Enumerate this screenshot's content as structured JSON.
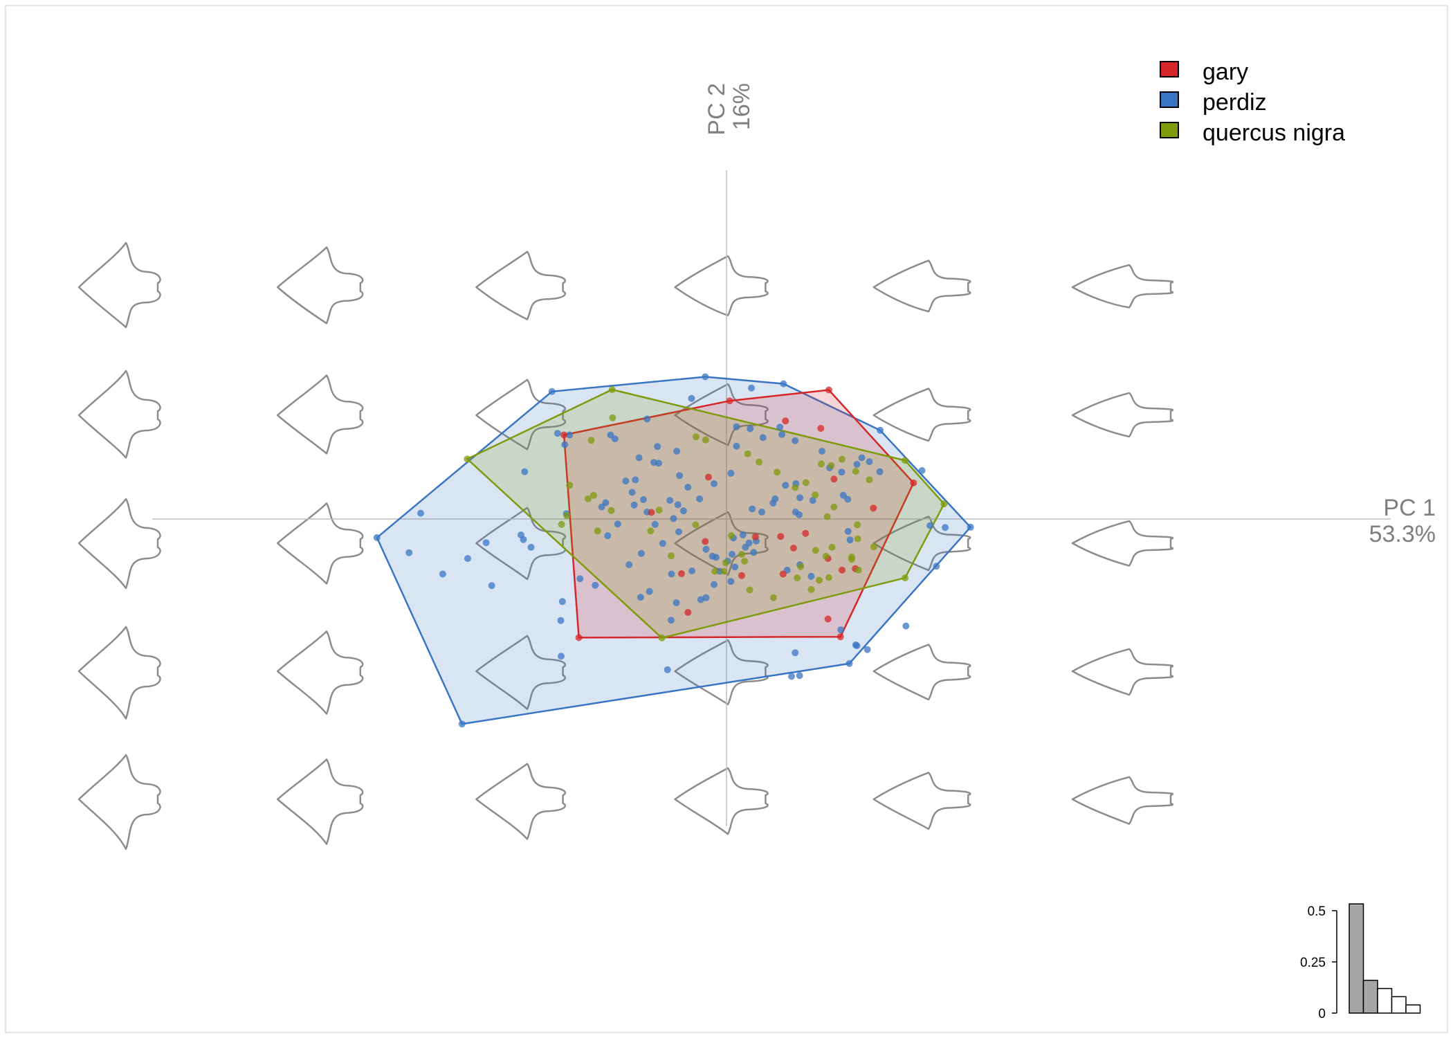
{
  "chart_data": {
    "type": "scatter",
    "xlabel": "PC 1",
    "xvariance": "53.3%",
    "ylabel": "PC 2",
    "yvariance": "16%",
    "xlim": [
      -1.0,
      1.0
    ],
    "ylim": [
      -0.5,
      0.6
    ],
    "legend_position": "top-right",
    "colors": {
      "gary": "#d62728",
      "perdiz": "#3a75c4",
      "quercus nigra": "#7f9a0c",
      "shape": "#8c8c8c",
      "axis": "#bfbfbf"
    },
    "series": [
      {
        "name": "gary",
        "color": "#d62728",
        "hull": [
          [
            -0.405,
            0.217
          ],
          [
            0.008,
            0.305
          ],
          [
            0.255,
            0.333
          ],
          [
            0.466,
            0.093
          ],
          [
            0.284,
            -0.304
          ],
          [
            -0.368,
            -0.306
          ]
        ],
        "points": [
          [
            -0.405,
            0.217
          ],
          [
            0.008,
            0.305
          ],
          [
            0.255,
            0.333
          ],
          [
            0.466,
            0.093
          ],
          [
            0.284,
            -0.304
          ],
          [
            -0.368,
            -0.306
          ],
          [
            -0.187,
            0.017
          ],
          [
            -0.053,
            -0.058
          ],
          [
            -0.045,
            0.108
          ],
          [
            0.072,
            -0.046
          ],
          [
            0.147,
            0.253
          ],
          [
            0.235,
            0.234
          ],
          [
            0.268,
            0.103
          ],
          [
            0.366,
            0.028
          ],
          [
            0.197,
            -0.037
          ],
          [
            0.167,
            -0.075
          ],
          [
            0.135,
            -0.045
          ],
          [
            0.141,
            -0.142
          ],
          [
            0.253,
            -0.102
          ],
          [
            0.288,
            -0.132
          ],
          [
            0.321,
            -0.128
          ],
          [
            0.253,
            -0.258
          ],
          [
            -0.112,
            -0.141
          ],
          [
            -0.096,
            -0.241
          ],
          [
            0.038,
            -0.146
          ]
        ]
      },
      {
        "name": "perdiz",
        "color": "#3a75c4",
        "hull": [
          [
            -0.871,
            -0.048
          ],
          [
            -0.435,
            0.329
          ],
          [
            -0.053,
            0.367
          ],
          [
            0.142,
            0.349
          ],
          [
            0.383,
            0.229
          ],
          [
            0.608,
            -0.021
          ],
          [
            0.306,
            -0.373
          ],
          [
            -0.659,
            -0.529
          ]
        ],
        "points": [
          [
            -0.871,
            -0.048
          ],
          [
            -0.435,
            0.329
          ],
          [
            -0.053,
            0.367
          ],
          [
            0.142,
            0.349
          ],
          [
            0.383,
            0.229
          ],
          [
            0.608,
            -0.021
          ],
          [
            0.306,
            -0.373
          ],
          [
            -0.659,
            -0.529
          ],
          [
            -0.762,
            0.015
          ],
          [
            -0.791,
            -0.087
          ],
          [
            -0.707,
            -0.142
          ],
          [
            -0.645,
            -0.102
          ],
          [
            -0.599,
            -0.061
          ],
          [
            -0.585,
            -0.172
          ],
          [
            -0.512,
            -0.041
          ],
          [
            -0.506,
            -0.053
          ],
          [
            -0.487,
            -0.073
          ],
          [
            -0.503,
            0.122
          ],
          [
            -0.403,
            0.192
          ],
          [
            -0.327,
            -0.171
          ],
          [
            -0.365,
            -0.154
          ],
          [
            -0.218,
            0.158
          ],
          [
            -0.181,
            0.146
          ],
          [
            -0.087,
            0.311
          ],
          [
            0.062,
            0.338
          ],
          [
            -0.198,
            0.258
          ],
          [
            -0.289,
            0.217
          ],
          [
            -0.278,
            0.207
          ],
          [
            -0.172,
            0.187
          ],
          [
            -0.124,
            0.175
          ],
          [
            -0.117,
            0.112
          ],
          [
            -0.086,
            -0.134
          ],
          [
            -0.031,
            0.091
          ],
          [
            0.025,
            0.238
          ],
          [
            0.059,
            0.233
          ],
          [
            0.091,
            0.21
          ],
          [
            0.133,
            0.237
          ],
          [
            0.171,
            0.202
          ],
          [
            0.238,
            0.175
          ],
          [
            0.257,
            0.132
          ],
          [
            0.287,
            0.121
          ],
          [
            0.291,
            0.061
          ],
          [
            0.303,
            -0.032
          ],
          [
            0.308,
            -0.054
          ],
          [
            0.325,
            0.141
          ],
          [
            0.337,
            0.158
          ],
          [
            0.356,
            0.148
          ],
          [
            0.211,
            -0.148
          ],
          [
            0.116,
            0.041
          ],
          [
            0.121,
            0.052
          ],
          [
            0.147,
            0.087
          ],
          [
            0.173,
            0.091
          ],
          [
            0.183,
            0.055
          ],
          [
            0.181,
            0.011
          ],
          [
            0.172,
            0.018
          ],
          [
            0.064,
            0.026
          ],
          [
            0.088,
            0.018
          ],
          [
            -0.067,
            0.052
          ],
          [
            -0.121,
            0.037
          ],
          [
            -0.207,
            0.05
          ],
          [
            -0.23,
            0.036
          ],
          [
            -0.198,
            0.018
          ],
          [
            -0.137,
            -0.142
          ],
          [
            -0.125,
            -0.216
          ],
          [
            -0.064,
            -0.208
          ],
          [
            -0.051,
            -0.203
          ],
          [
            -0.031,
            -0.169
          ],
          [
            0.003,
            -0.109
          ],
          [
            0.014,
            -0.091
          ],
          [
            0.041,
            -0.041
          ],
          [
            0.047,
            -0.073
          ],
          [
            0.056,
            -0.062
          ],
          [
            0.074,
            -0.057
          ],
          [
            0.068,
            -0.086
          ],
          [
            0.021,
            -0.124
          ],
          [
            -0.026,
            -0.099
          ],
          [
            -0.051,
            -0.078
          ],
          [
            -0.035,
            -0.096
          ],
          [
            -0.017,
            -0.135
          ],
          [
            0.011,
            -0.161
          ],
          [
            0.151,
            -0.132
          ],
          [
            0.183,
            -0.118
          ],
          [
            0.215,
            0.048
          ],
          [
            -0.214,
            -0.202
          ],
          [
            -0.138,
            -0.261
          ],
          [
            -0.235,
            0.069
          ],
          [
            -0.271,
            -0.013
          ],
          [
            -0.296,
            -0.043
          ],
          [
            -0.311,
            0.031
          ],
          [
            -0.301,
            0.042
          ],
          [
            -0.227,
            0.101
          ],
          [
            -0.178,
            -0.014
          ],
          [
            -0.107,
            0.021
          ],
          [
            -0.132,
            0.001
          ],
          [
            -0.141,
            0.048
          ],
          [
            -0.119,
            -0.033
          ],
          [
            -0.096,
            0.082
          ],
          [
            -0.159,
            -0.063
          ],
          [
            -0.212,
            -0.089
          ],
          [
            -0.243,
            -0.118
          ],
          [
            -0.192,
            -0.187
          ],
          [
            0.017,
            -0.049
          ],
          [
            0.025,
            0.188
          ],
          [
            -0.169,
            0.144
          ],
          [
            -0.251,
            0.098
          ],
          [
            0.138,
            0.218
          ],
          [
            0.011,
            0.118
          ],
          [
            -0.412,
            -0.354
          ],
          [
            -0.409,
            -0.213
          ],
          [
            -0.147,
            -0.389
          ],
          [
            0.322,
            -0.325
          ],
          [
            0.285,
            -0.286
          ],
          [
            0.351,
            -0.337
          ],
          [
            0.325,
            -0.327
          ],
          [
            0.447,
            -0.276
          ],
          [
            0.487,
            0.125
          ],
          [
            0.507,
            -0.017
          ],
          [
            0.523,
            -0.122
          ],
          [
            0.545,
            -0.022
          ],
          [
            0.171,
            -0.345
          ],
          [
            0.182,
            -0.404
          ],
          [
            0.162,
            -0.406
          ],
          [
            0.382,
            0.122
          ],
          [
            0.302,
            0.051
          ],
          [
            -0.413,
            -0.262
          ],
          [
            -0.399,
            0.014
          ],
          [
            -0.391,
            0.217
          ],
          [
            -0.421,
            0.221
          ]
        ]
      },
      {
        "name": "quercus nigra",
        "color": "#7f9a0c",
        "hull": [
          [
            -0.646,
            0.155
          ],
          [
            -0.285,
            0.334
          ],
          [
            0.445,
            0.151
          ],
          [
            0.542,
            0.039
          ],
          [
            0.445,
            -0.152
          ],
          [
            -0.161,
            -0.307
          ]
        ],
        "points": [
          [
            -0.646,
            0.155
          ],
          [
            -0.285,
            0.334
          ],
          [
            -0.161,
            -0.307
          ],
          [
            0.445,
            0.151
          ],
          [
            0.542,
            0.039
          ],
          [
            0.445,
            -0.152
          ],
          [
            -0.345,
            0.052
          ],
          [
            -0.398,
            0.009
          ],
          [
            -0.411,
            -0.014
          ],
          [
            -0.331,
            0.061
          ],
          [
            -0.284,
            0.261
          ],
          [
            -0.337,
            0.203
          ],
          [
            -0.076,
            0.212
          ],
          [
            -0.052,
            0.204
          ],
          [
            0.053,
            0.168
          ],
          [
            0.081,
            0.147
          ],
          [
            0.126,
            0.121
          ],
          [
            0.171,
            0.081
          ],
          [
            0.198,
            0.094
          ],
          [
            0.221,
            0.062
          ],
          [
            0.236,
            0.142
          ],
          [
            0.261,
            0.138
          ],
          [
            0.288,
            0.154
          ],
          [
            0.356,
            0.101
          ],
          [
            0.322,
            0.123
          ],
          [
            0.251,
            0.006
          ],
          [
            0.326,
            -0.015
          ],
          [
            0.327,
            -0.051
          ],
          [
            0.312,
            -0.098
          ],
          [
            0.367,
            -0.072
          ],
          [
            0.329,
            -0.132
          ],
          [
            0.231,
            -0.158
          ],
          [
            0.211,
            -0.182
          ],
          [
            0.176,
            -0.152
          ],
          [
            0.185,
            -0.123
          ],
          [
            0.248,
            -0.096
          ],
          [
            0.263,
            -0.073
          ],
          [
            0.117,
            -0.203
          ],
          [
            0.058,
            -0.183
          ],
          [
            -0.007,
            -0.135
          ],
          [
            -0.002,
            -0.113
          ],
          [
            -0.029,
            -0.135
          ],
          [
            0.045,
            -0.109
          ],
          [
            0.038,
            -0.091
          ],
          [
            0.012,
            -0.043
          ],
          [
            -0.168,
            0.023
          ],
          [
            -0.077,
            -0.015
          ],
          [
            -0.138,
            -0.095
          ],
          [
            -0.189,
            -0.031
          ],
          [
            -0.321,
            -0.031
          ],
          [
            -0.287,
            0.022
          ],
          [
            -0.391,
            0.087
          ],
          [
            0.268,
            0.031
          ],
          [
            0.255,
            -0.151
          ],
          [
            0.222,
            -0.081
          ],
          [
            0.312,
            -0.104
          ]
        ]
      }
    ],
    "variance_bars": {
      "values": [
        0.533,
        0.16,
        0.12,
        0.08,
        0.04
      ],
      "ticks": [
        "0.5",
        "0.25",
        "0"
      ]
    }
  },
  "legend": {
    "items": [
      {
        "label": "gary",
        "color": "#d62728"
      },
      {
        "label": "perdiz",
        "color": "#3a75c4"
      },
      {
        "label": "quercus nigra",
        "color": "#7f9a0c"
      }
    ]
  }
}
